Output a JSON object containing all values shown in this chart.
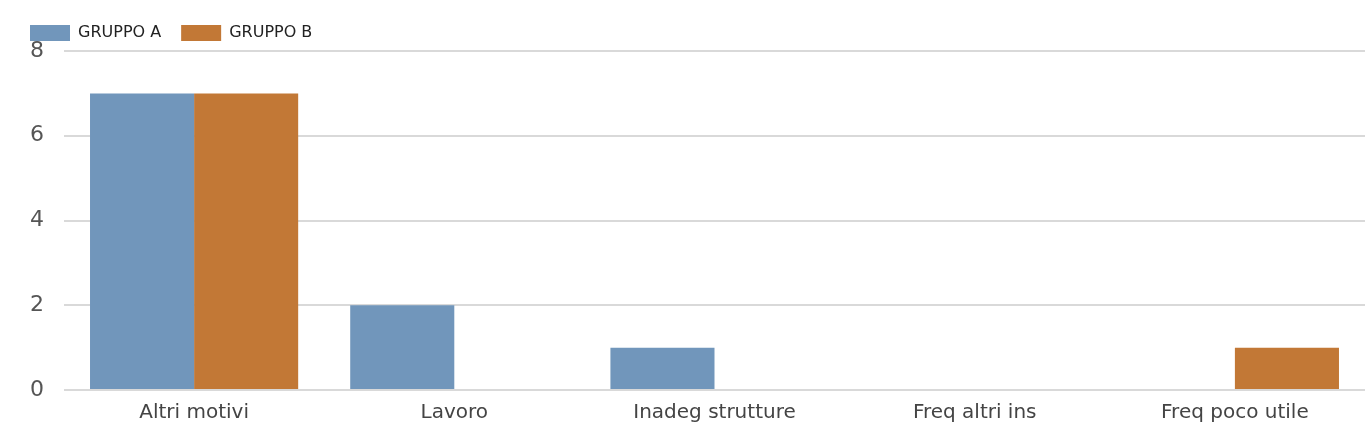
{
  "chart_data": {
    "type": "bar",
    "categories": [
      "Altri motivi",
      "Lavoro",
      "Inadeg strutture",
      "Freq altri ins",
      "Freq poco utile"
    ],
    "series": [
      {
        "name": "GRUPPO A",
        "color": "#7196bb",
        "values": [
          7,
          2,
          1,
          0,
          0
        ]
      },
      {
        "name": "GRUPPO B",
        "color": "#c27836",
        "values": [
          7,
          0,
          0,
          0,
          1
        ]
      }
    ],
    "ylim": [
      0,
      8
    ],
    "yticks": [
      0,
      2,
      4,
      6,
      8
    ],
    "grid": "y",
    "legend": "top left"
  }
}
